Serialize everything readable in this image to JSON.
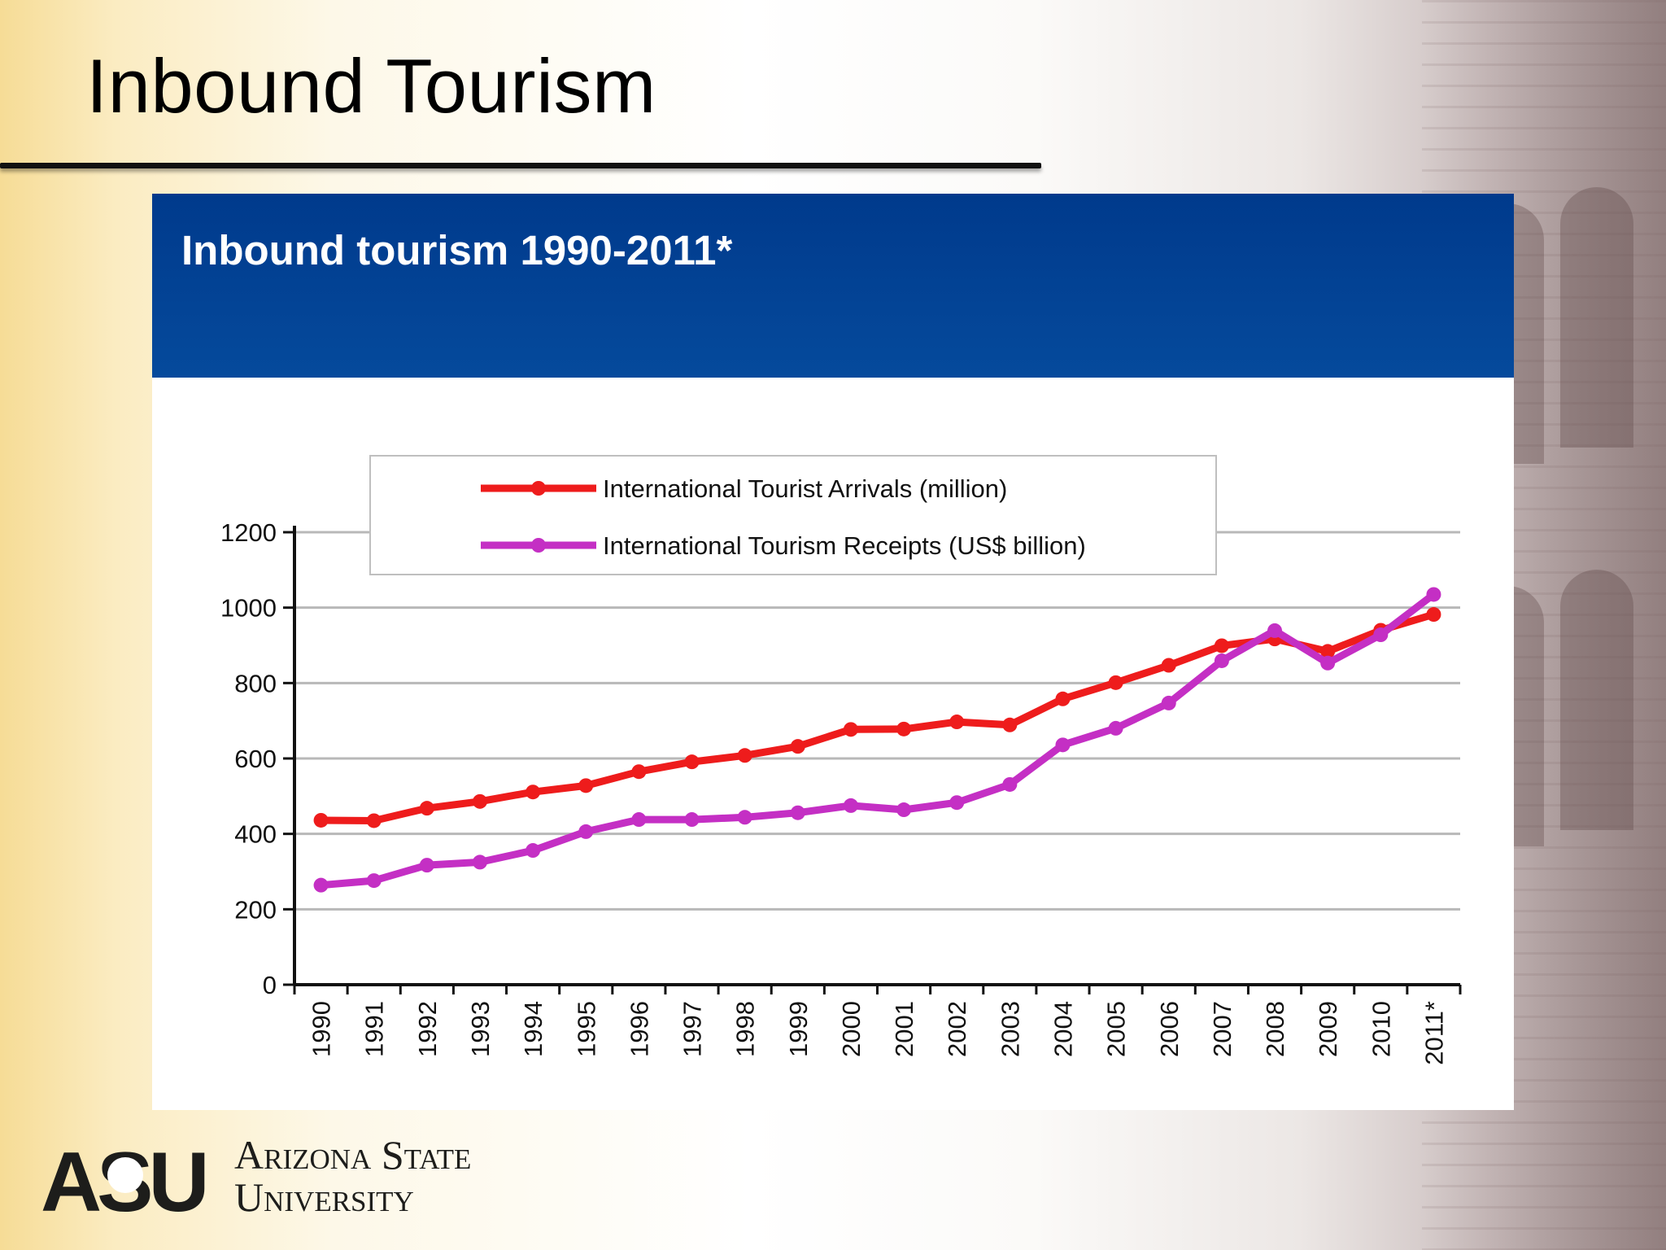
{
  "slide": {
    "title": "Inbound Tourism"
  },
  "logo": {
    "mark": "ASU",
    "line1": "Arizona State",
    "line2": "University"
  },
  "colors": {
    "banner": "#003a8c",
    "arrivals": "#ee1c1c",
    "receipts": "#c42fc4"
  },
  "chart_data": {
    "type": "line",
    "title": "Inbound tourism 1990-2011*",
    "categories": [
      "1990",
      "1991",
      "1992",
      "1993",
      "1994",
      "1995",
      "1996",
      "1997",
      "1998",
      "1999",
      "2000",
      "2001",
      "2002",
      "2003",
      "2004",
      "2005",
      "2006",
      "2007",
      "2008",
      "2009",
      "2010",
      "2011*"
    ],
    "series": [
      {
        "name": "International Tourist Arrivals (million)",
        "values": [
          436,
          435,
          468,
          486,
          511,
          528,
          565,
          591,
          608,
          632,
          677,
          678,
          697,
          689,
          758,
          801,
          847,
          899,
          917,
          884,
          940,
          982
        ]
      },
      {
        "name": "International Tourism Receipts (US$ billion)",
        "values": [
          264,
          276,
          317,
          325,
          356,
          406,
          438,
          438,
          444,
          456,
          475,
          464,
          483,
          531,
          636,
          680,
          747,
          859,
          939,
          853,
          928,
          1035
        ]
      }
    ],
    "ylim": [
      0,
      1200
    ],
    "yticks": [
      0,
      200,
      400,
      600,
      800,
      1000,
      1200
    ],
    "grid": true,
    "legend": "top-left, inside plot"
  }
}
